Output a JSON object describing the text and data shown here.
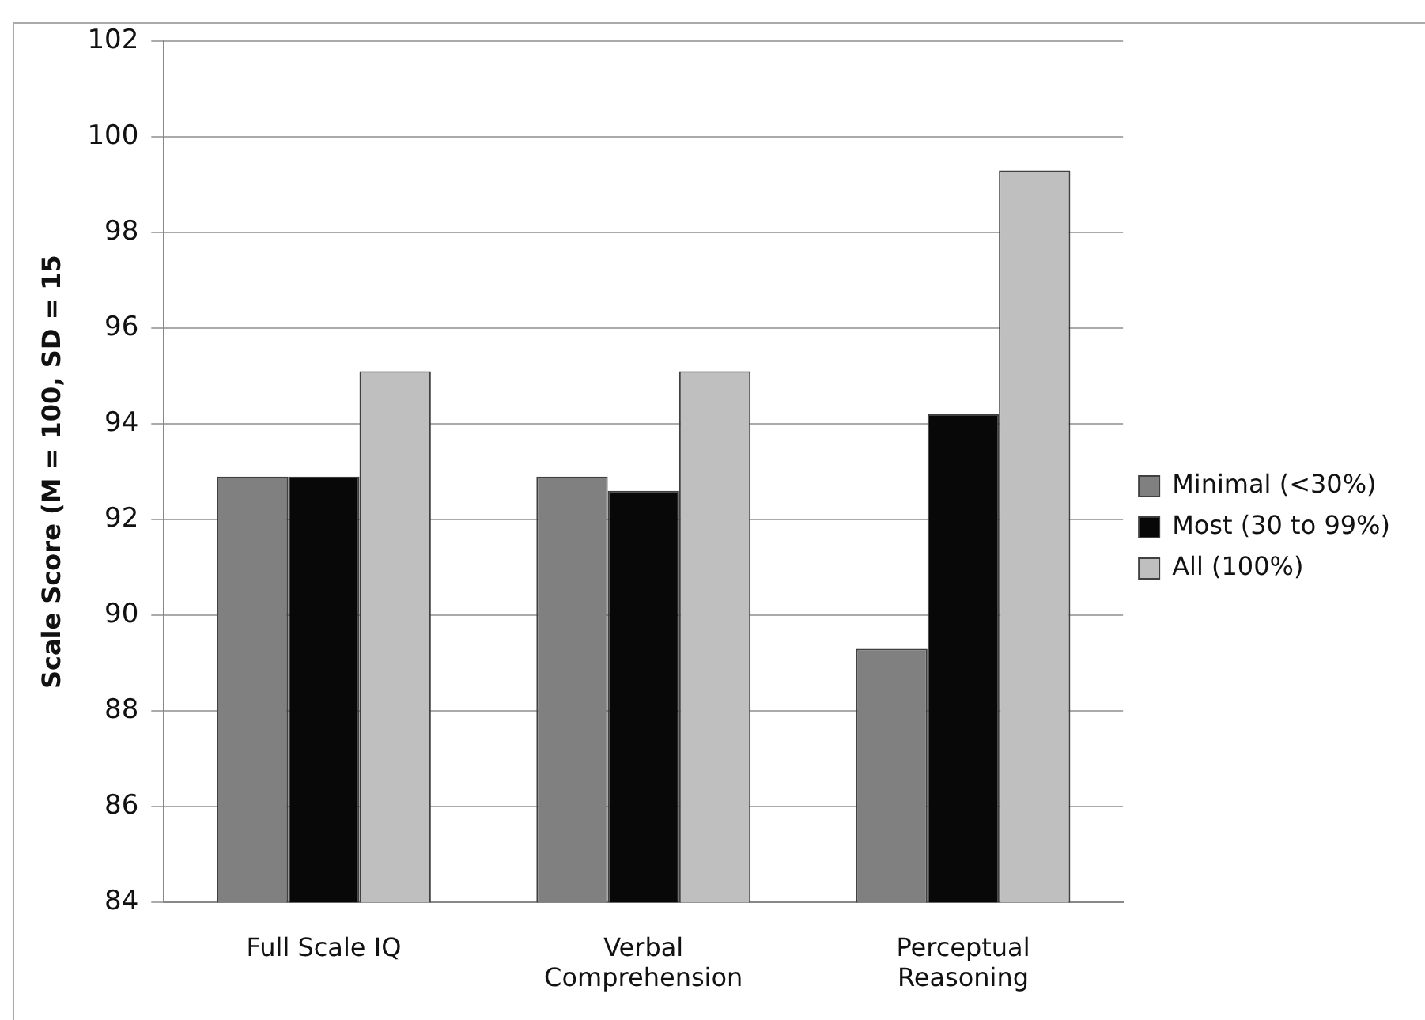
{
  "chart_data": {
    "type": "bar",
    "ylabel": "Scale Score (M = 100, SD = 15",
    "categories": [
      "Full Scale IQ",
      "Verbal Comprehension",
      "Perceptual Reasoning"
    ],
    "series": [
      {
        "name": "Minimal (<30%)",
        "color": "#808080",
        "values": [
          92.9,
          92.9,
          89.3
        ]
      },
      {
        "name": "Most (30 to 99%)",
        "color": "#080808",
        "values": [
          92.9,
          92.6,
          94.2
        ]
      },
      {
        "name": "All (100%)",
        "color": "#bfbfbf",
        "values": [
          95.1,
          95.1,
          99.3
        ]
      }
    ],
    "ylim": [
      84,
      102
    ],
    "yticks": [
      84,
      86,
      88,
      90,
      92,
      94,
      96,
      98,
      100,
      102
    ],
    "grid": "y",
    "legend": "right"
  }
}
